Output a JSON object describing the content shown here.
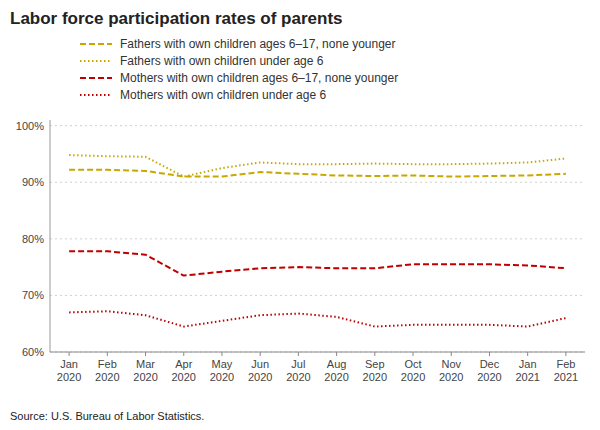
{
  "chart_data": {
    "type": "line",
    "title": "Labor force participation rates of parents",
    "source": "Source: U.S. Bureau of Labor Statistics.",
    "categories": [
      "Jan\n2020",
      "Feb\n2020",
      "Mar\n2020",
      "Apr\n2020",
      "May\n2020",
      "Jun\n2020",
      "Jul\n2020",
      "Aug\n2020",
      "Sep\n2020",
      "Oct\n2020",
      "Nov\n2020",
      "Dec\n2020",
      "Jan\n2021",
      "Feb\n2021"
    ],
    "series": [
      {
        "name": "Fathers with own children ages 6–17, none younger",
        "color": "#C8A800",
        "line_style": "dashed",
        "values": [
          92.2,
          92.2,
          92.0,
          91.0,
          91.0,
          91.8,
          91.5,
          91.2,
          91.1,
          91.2,
          91.0,
          91.1,
          91.2,
          91.5
        ]
      },
      {
        "name": "Fathers with own children under age 6",
        "color": "#C8A800",
        "line_style": "dotted",
        "values": [
          94.8,
          94.6,
          94.5,
          91.0,
          92.5,
          93.5,
          93.2,
          93.2,
          93.3,
          93.2,
          93.2,
          93.3,
          93.5,
          94.2
        ]
      },
      {
        "name": "Mothers with own children ages 6–17, none younger",
        "color": "#C00000",
        "line_style": "dashed",
        "values": [
          77.8,
          77.8,
          77.2,
          73.5,
          74.2,
          74.8,
          75.0,
          74.8,
          74.8,
          75.5,
          75.5,
          75.5,
          75.3,
          74.8
        ]
      },
      {
        "name": "Mothers with own children under age 6",
        "color": "#C00000",
        "line_style": "dotted",
        "values": [
          67.0,
          67.2,
          66.5,
          64.5,
          65.5,
          66.5,
          66.8,
          66.2,
          64.5,
          64.8,
          64.8,
          64.8,
          64.5,
          66.0
        ]
      }
    ],
    "ylim": [
      60,
      101
    ],
    "yticks": [
      {
        "value": 60,
        "label": "60%"
      },
      {
        "value": 70,
        "label": "70%"
      },
      {
        "value": 80,
        "label": "80%"
      },
      {
        "value": 90,
        "label": "90%"
      },
      {
        "value": 100,
        "label": "100%"
      }
    ],
    "grid": true,
    "legend": "top"
  }
}
